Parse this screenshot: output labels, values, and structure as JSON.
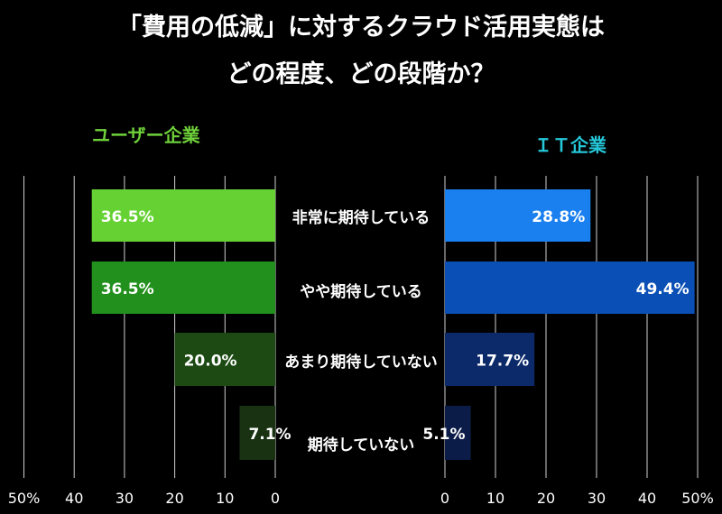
{
  "title_line1": "「費用の低減」に対するクラウド活用実態は",
  "title_line2": "どの程度、どの段階か？",
  "chart_data": [
    {
      "type": "bar",
      "orientation": "horizontal",
      "direction": "right-to-left",
      "panel_label": "ユーザー企業",
      "categories": [
        "非常に期待している",
        "やや期待している",
        "あまり期待していない",
        "期待していない"
      ],
      "values": [
        36.5,
        36.5,
        20.0,
        7.1
      ],
      "value_labels": [
        "36.5%",
        "36.5%",
        "20.0%",
        "7.1%"
      ],
      "xlim": [
        0,
        50
      ],
      "tick_labels": [
        "50%",
        "40",
        "30",
        "20",
        "10",
        "0"
      ],
      "bar_colors": [
        "#66d133",
        "#22901c",
        "#1c4a12",
        "#183212"
      ],
      "grid": true
    },
    {
      "type": "bar",
      "orientation": "horizontal",
      "direction": "left-to-right",
      "panel_label": "ＩＴ企業",
      "categories": [
        "非常に期待している",
        "やや期待している",
        "あまり期待していない",
        "期待していない"
      ],
      "values": [
        28.8,
        49.4,
        17.7,
        5.1
      ],
      "value_labels": [
        "28.8%",
        "49.4%",
        "17.7%",
        "5.1%"
      ],
      "xlim": [
        0,
        50
      ],
      "tick_labels": [
        "0",
        "10",
        "20",
        "30",
        "40",
        "50%"
      ],
      "bar_colors": [
        "#1a80f0",
        "#0a4fb5",
        "#0c2a6a",
        "#0c1c48"
      ],
      "grid": true
    }
  ],
  "colors": {
    "user_label": "#6fd13a",
    "it_label": "#25c7d9",
    "grid": "#cfcfcf"
  }
}
